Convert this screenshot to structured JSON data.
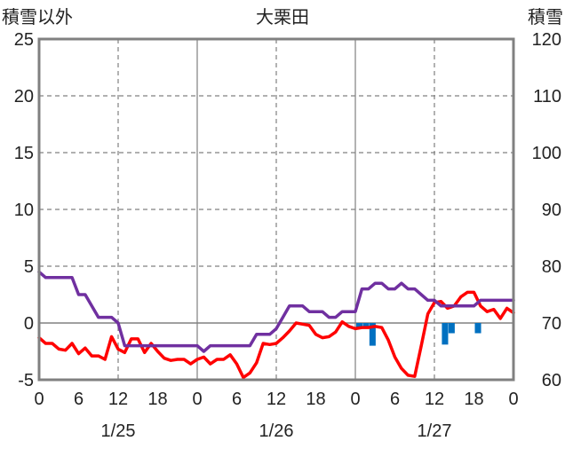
{
  "chart_data": {
    "type": "line",
    "title": "大栗田",
    "left_axis_label": "積雪以外",
    "right_axis_label": "積雪",
    "y_left": {
      "min": -5,
      "max": 25,
      "ticks": [
        25,
        20,
        15,
        10,
        5,
        0,
        -5
      ]
    },
    "y_right": {
      "min": 60,
      "max": 120,
      "ticks": [
        120,
        110,
        100,
        90,
        80,
        70,
        60
      ]
    },
    "x": {
      "min": 0,
      "max": 72,
      "tick_positions": [
        0,
        6,
        12,
        18,
        24,
        30,
        36,
        42,
        48,
        54,
        60,
        66,
        72
      ],
      "tick_labels": [
        "0",
        "6",
        "12",
        "18",
        "0",
        "6",
        "12",
        "18",
        "0",
        "6",
        "12",
        "18",
        "0"
      ],
      "day_boundaries": [
        24,
        48
      ],
      "date_labels": [
        {
          "at": 12,
          "text": "1/25"
        },
        {
          "at": 36,
          "text": "1/26"
        },
        {
          "at": 60,
          "text": "1/27"
        }
      ]
    },
    "grid": true,
    "series": [
      {
        "key": "temperature",
        "axis": "left",
        "color": "#ff0000",
        "kind": "line",
        "values": [
          [
            0,
            -1.3
          ],
          [
            1,
            -1.8
          ],
          [
            2,
            -1.8
          ],
          [
            3,
            -2.3
          ],
          [
            4,
            -2.4
          ],
          [
            5,
            -1.8
          ],
          [
            6,
            -2.7
          ],
          [
            7,
            -2.2
          ],
          [
            8,
            -2.9
          ],
          [
            9,
            -2.9
          ],
          [
            10,
            -3.2
          ],
          [
            11,
            -1.2
          ],
          [
            12,
            -2.3
          ],
          [
            13,
            -2.6
          ],
          [
            14,
            -1.4
          ],
          [
            15,
            -1.4
          ],
          [
            16,
            -2.6
          ],
          [
            17,
            -1.8
          ],
          [
            18,
            -2.5
          ],
          [
            19,
            -3.1
          ],
          [
            20,
            -3.3
          ],
          [
            21,
            -3.2
          ],
          [
            22,
            -3.2
          ],
          [
            23,
            -3.6
          ],
          [
            24,
            -3.2
          ],
          [
            25,
            -3.0
          ],
          [
            26,
            -3.6
          ],
          [
            27,
            -3.2
          ],
          [
            28,
            -3.2
          ],
          [
            29,
            -2.8
          ],
          [
            30,
            -3.6
          ],
          [
            31,
            -4.8
          ],
          [
            32,
            -4.4
          ],
          [
            33,
            -3.5
          ],
          [
            34,
            -1.8
          ],
          [
            35,
            -1.9
          ],
          [
            36,
            -1.8
          ],
          [
            37,
            -1.3
          ],
          [
            38,
            -0.7
          ],
          [
            39,
            0.0
          ],
          [
            40,
            -0.1
          ],
          [
            41,
            -0.2
          ],
          [
            42,
            -1.0
          ],
          [
            43,
            -1.3
          ],
          [
            44,
            -1.2
          ],
          [
            45,
            -0.8
          ],
          [
            46,
            0.1
          ],
          [
            47,
            -0.3
          ],
          [
            48,
            -0.5
          ],
          [
            49,
            -0.4
          ],
          [
            50,
            -0.4
          ],
          [
            51,
            -0.3
          ],
          [
            52,
            -0.4
          ],
          [
            53,
            -1.5
          ],
          [
            54,
            -3.0
          ],
          [
            55,
            -4.0
          ],
          [
            56,
            -4.6
          ],
          [
            57,
            -4.7
          ],
          [
            58,
            -2.0
          ],
          [
            59,
            0.8
          ],
          [
            60,
            1.8
          ],
          [
            61,
            1.9
          ],
          [
            62,
            1.3
          ],
          [
            63,
            1.5
          ],
          [
            64,
            2.3
          ],
          [
            65,
            2.7
          ],
          [
            66,
            2.7
          ],
          [
            67,
            1.5
          ],
          [
            68,
            1.0
          ],
          [
            69,
            1.2
          ],
          [
            70,
            0.4
          ],
          [
            71,
            1.3
          ],
          [
            72,
            0.9
          ]
        ]
      },
      {
        "key": "snow_depth",
        "axis": "right",
        "color": "#7030a0",
        "kind": "line",
        "values": [
          [
            0,
            79
          ],
          [
            1,
            78
          ],
          [
            2,
            78
          ],
          [
            3,
            78
          ],
          [
            4,
            78
          ],
          [
            5,
            78
          ],
          [
            6,
            75
          ],
          [
            7,
            75
          ],
          [
            8,
            73
          ],
          [
            9,
            71
          ],
          [
            10,
            71
          ],
          [
            11,
            71
          ],
          [
            12,
            70
          ],
          [
            13,
            66
          ],
          [
            14,
            66
          ],
          [
            15,
            66
          ],
          [
            16,
            66
          ],
          [
            17,
            66
          ],
          [
            18,
            66
          ],
          [
            19,
            66
          ],
          [
            20,
            66
          ],
          [
            21,
            66
          ],
          [
            22,
            66
          ],
          [
            23,
            66
          ],
          [
            24,
            66
          ],
          [
            25,
            65
          ],
          [
            26,
            66
          ],
          [
            27,
            66
          ],
          [
            28,
            66
          ],
          [
            29,
            66
          ],
          [
            30,
            66
          ],
          [
            31,
            66
          ],
          [
            32,
            66
          ],
          [
            33,
            68
          ],
          [
            34,
            68
          ],
          [
            35,
            68
          ],
          [
            36,
            69
          ],
          [
            37,
            71
          ],
          [
            38,
            73
          ],
          [
            39,
            73
          ],
          [
            40,
            73
          ],
          [
            41,
            72
          ],
          [
            42,
            72
          ],
          [
            43,
            72
          ],
          [
            44,
            71
          ],
          [
            45,
            71
          ],
          [
            46,
            72
          ],
          [
            47,
            72
          ],
          [
            48,
            72
          ],
          [
            49,
            76
          ],
          [
            50,
            76
          ],
          [
            51,
            77
          ],
          [
            52,
            77
          ],
          [
            53,
            76
          ],
          [
            54,
            76
          ],
          [
            55,
            77
          ],
          [
            56,
            76
          ],
          [
            57,
            76
          ],
          [
            58,
            75
          ],
          [
            59,
            74
          ],
          [
            60,
            74
          ],
          [
            61,
            73
          ],
          [
            62,
            73
          ],
          [
            63,
            73
          ],
          [
            64,
            73
          ],
          [
            65,
            73
          ],
          [
            66,
            73
          ],
          [
            67,
            74
          ],
          [
            68,
            74
          ],
          [
            69,
            74
          ],
          [
            70,
            74
          ],
          [
            71,
            74
          ],
          [
            72,
            74
          ]
        ]
      },
      {
        "key": "precipitation",
        "axis": "left",
        "color": "#0070c0",
        "kind": "bar",
        "values": [
          [
            48,
            -0.5
          ],
          [
            49,
            -0.5
          ],
          [
            50,
            -2.0
          ],
          [
            61,
            -1.9
          ],
          [
            62,
            -0.9
          ],
          [
            66,
            -0.9
          ]
        ]
      }
    ]
  }
}
